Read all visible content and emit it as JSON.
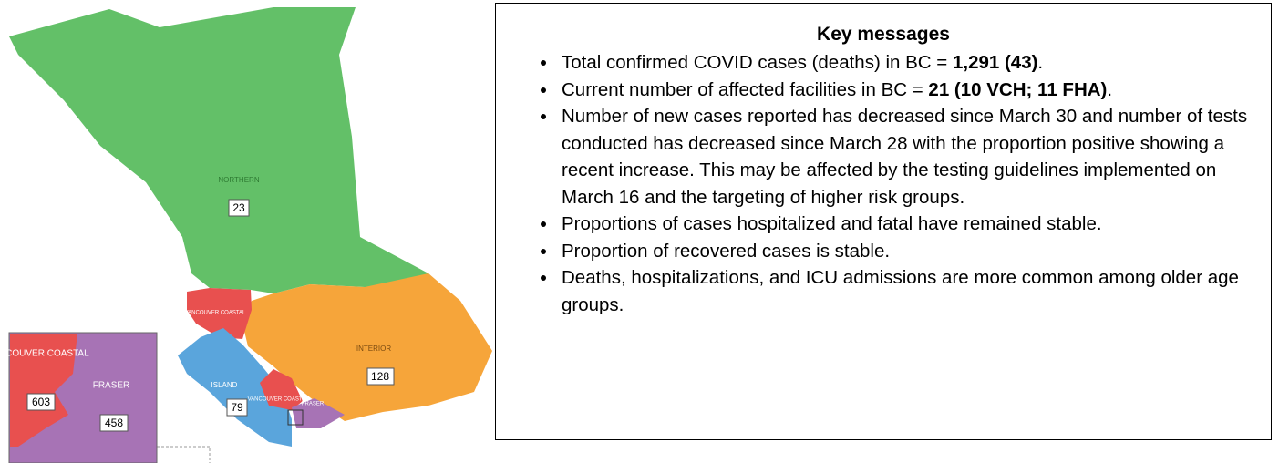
{
  "map": {
    "regions": [
      {
        "label": "NORTHERN",
        "cases": "23"
      },
      {
        "label": "INTERIOR",
        "cases": "128"
      },
      {
        "label": "ISLAND",
        "cases": "79"
      },
      {
        "label": "VANCOUVER COASTAL"
      },
      {
        "label": "VANCOUVER COASTAL"
      },
      {
        "label": "FRASER"
      }
    ],
    "inset": [
      {
        "label": "VANCOUVER COASTAL",
        "cases": "603"
      },
      {
        "label": "FRASER",
        "cases": "458"
      }
    ]
  },
  "key_messages": {
    "title": "Key messages",
    "bullets": [
      [
        {
          "text": "Total confirmed COVID cases (deaths) in BC = "
        },
        {
          "text": "1,291 (43)",
          "bold": true
        },
        {
          "text": "."
        }
      ],
      [
        {
          "text": "Current number of affected facilities in BC = "
        },
        {
          "text": "21 (10 VCH; 11 FHA)",
          "bold": true
        },
        {
          "text": "."
        }
      ],
      [
        {
          "text": "Number of new cases reported has decreased since March 30 and number of tests conducted has decreased since March 28 with the proportion positive showing a recent increase. This may be affected by the testing guidelines implemented on March 16 and the targeting of higher risk groups."
        }
      ],
      [
        {
          "text": "Proportions of cases hospitalized and fatal have remained stable."
        }
      ],
      [
        {
          "text": "Proportion of recovered cases is stable."
        }
      ],
      [
        {
          "text": "Deaths, hospitalizations, and ICU admissions are more common among older age groups."
        }
      ]
    ]
  }
}
